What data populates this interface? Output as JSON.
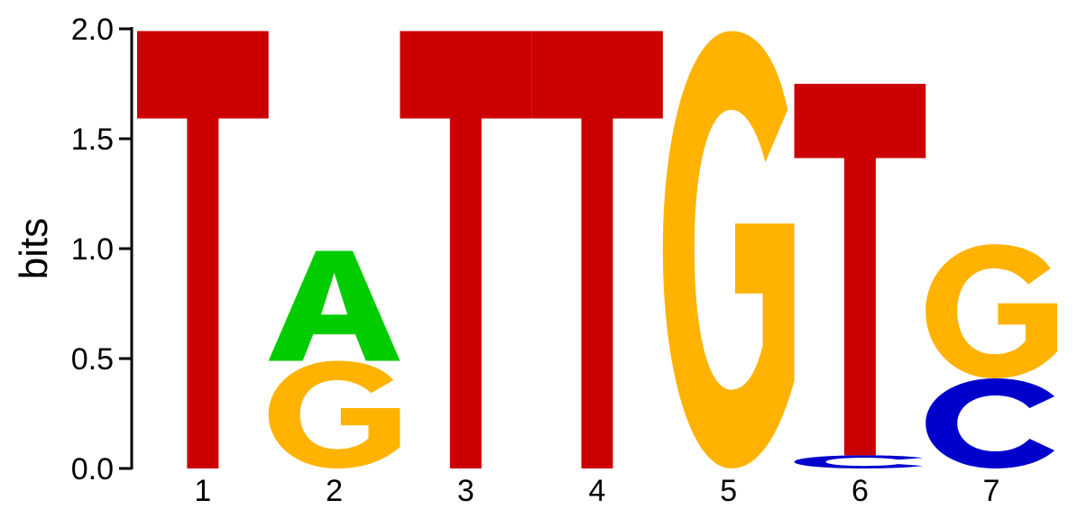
{
  "chart_data": {
    "type": "sequence-logo",
    "title": "",
    "ylabel": "bits",
    "xlabel": "",
    "ylim": [
      0,
      2.0
    ],
    "yticks": [
      "0.0",
      "0.5",
      "1.0",
      "1.5",
      "2.0"
    ],
    "positions": [
      "1",
      "2",
      "3",
      "4",
      "5",
      "6",
      "7"
    ],
    "colors": {
      "A": "#00cc00",
      "C": "#0000cc",
      "G": "#ffb300",
      "T": "#cc0000"
    },
    "stacks": [
      {
        "position": "1",
        "letters": [
          {
            "base": "T",
            "bits": 1.99
          }
        ]
      },
      {
        "position": "2",
        "letters": [
          {
            "base": "G",
            "bits": 0.49
          },
          {
            "base": "A",
            "bits": 0.5
          }
        ]
      },
      {
        "position": "3",
        "letters": [
          {
            "base": "T",
            "bits": 1.99
          }
        ]
      },
      {
        "position": "4",
        "letters": [
          {
            "base": "T",
            "bits": 1.99
          }
        ]
      },
      {
        "position": "5",
        "letters": [
          {
            "base": "G",
            "bits": 1.99
          }
        ]
      },
      {
        "position": "6",
        "letters": [
          {
            "base": "C",
            "bits": 0.06
          },
          {
            "base": "T",
            "bits": 1.69
          }
        ]
      },
      {
        "position": "7",
        "letters": [
          {
            "base": "C",
            "bits": 0.41
          },
          {
            "base": "G",
            "bits": 0.61
          }
        ]
      }
    ]
  }
}
